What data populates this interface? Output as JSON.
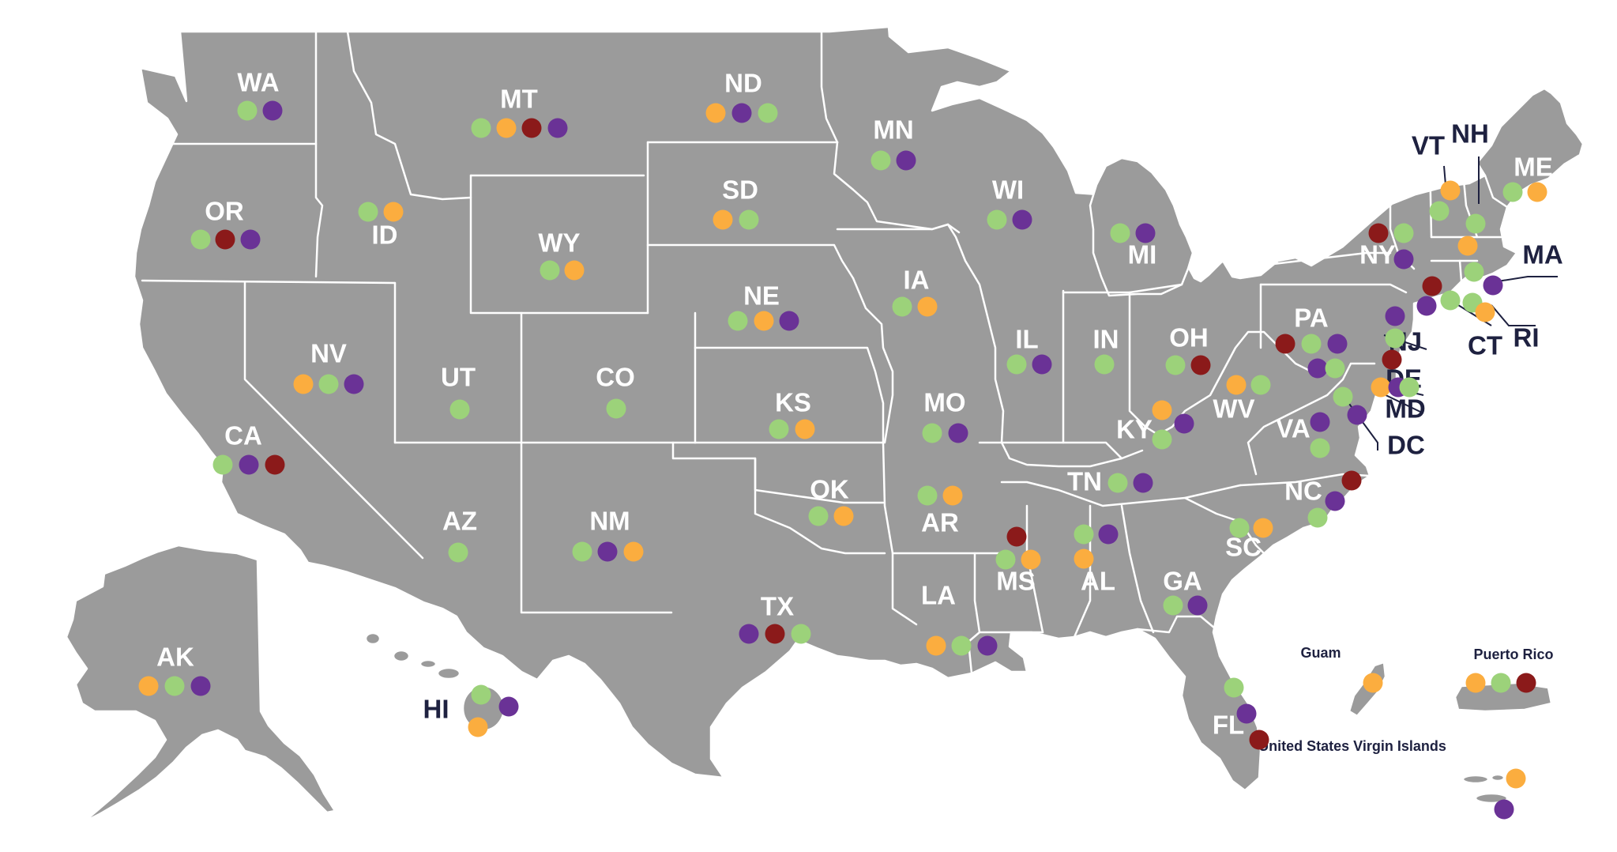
{
  "colors": {
    "land": "#9b9b9b",
    "green": "#9cd27a",
    "orange": "#fbad3f",
    "red": "#8b1a1a",
    "purple": "#6a3296",
    "outside_label": "#1e2140"
  },
  "states": [
    {
      "abbr": "WA",
      "markers": [
        "green",
        "purple"
      ]
    },
    {
      "abbr": "OR",
      "markers": [
        "green",
        "red",
        "purple"
      ]
    },
    {
      "abbr": "CA",
      "markers": [
        "green",
        "purple",
        "red"
      ]
    },
    {
      "abbr": "ID",
      "markers": [
        "green",
        "orange"
      ]
    },
    {
      "abbr": "NV",
      "markers": [
        "orange",
        "green",
        "purple"
      ]
    },
    {
      "abbr": "MT",
      "markers": [
        "green",
        "orange",
        "red",
        "purple"
      ]
    },
    {
      "abbr": "WY",
      "markers": [
        "green",
        "orange"
      ]
    },
    {
      "abbr": "UT",
      "markers": [
        "green"
      ]
    },
    {
      "abbr": "AZ",
      "markers": [
        "green"
      ]
    },
    {
      "abbr": "CO",
      "markers": [
        "green"
      ]
    },
    {
      "abbr": "NM",
      "markers": [
        "green",
        "purple",
        "orange"
      ]
    },
    {
      "abbr": "ND",
      "markers": [
        "orange",
        "purple",
        "green"
      ]
    },
    {
      "abbr": "SD",
      "markers": [
        "orange",
        "green"
      ]
    },
    {
      "abbr": "NE",
      "markers": [
        "green",
        "orange",
        "purple"
      ]
    },
    {
      "abbr": "KS",
      "markers": [
        "green",
        "orange"
      ]
    },
    {
      "abbr": "OK",
      "markers": [
        "green",
        "orange"
      ]
    },
    {
      "abbr": "TX",
      "markers": [
        "purple",
        "red",
        "green"
      ]
    },
    {
      "abbr": "MN",
      "markers": [
        "green",
        "purple"
      ]
    },
    {
      "abbr": "IA",
      "markers": [
        "green",
        "orange"
      ]
    },
    {
      "abbr": "MO",
      "markers": [
        "green",
        "purple"
      ]
    },
    {
      "abbr": "AR",
      "markers": [
        "green",
        "orange"
      ]
    },
    {
      "abbr": "LA",
      "markers": [
        "orange",
        "green",
        "purple"
      ]
    },
    {
      "abbr": "WI",
      "markers": [
        "green",
        "purple"
      ]
    },
    {
      "abbr": "IL",
      "markers": [
        "green",
        "purple"
      ]
    },
    {
      "abbr": "MI",
      "markers": [
        "green",
        "purple"
      ]
    },
    {
      "abbr": "IN",
      "markers": [
        "green"
      ]
    },
    {
      "abbr": "OH",
      "markers": [
        "green",
        "red"
      ]
    },
    {
      "abbr": "KY",
      "markers": [
        "orange",
        "purple",
        "green"
      ]
    },
    {
      "abbr": "TN",
      "markers": [
        "green",
        "purple"
      ]
    },
    {
      "abbr": "MS",
      "markers": [
        "red",
        "green",
        "orange"
      ]
    },
    {
      "abbr": "AL",
      "markers": [
        "green",
        "purple",
        "orange"
      ]
    },
    {
      "abbr": "GA",
      "markers": [
        "green",
        "purple"
      ]
    },
    {
      "abbr": "FL",
      "markers": [
        "green",
        "purple",
        "red"
      ]
    },
    {
      "abbr": "SC",
      "markers": [
        "green",
        "orange"
      ]
    },
    {
      "abbr": "NC",
      "markers": [
        "red",
        "purple",
        "green"
      ]
    },
    {
      "abbr": "VA",
      "markers": [
        "purple",
        "green"
      ]
    },
    {
      "abbr": "WV",
      "markers": [
        "orange",
        "green"
      ]
    },
    {
      "abbr": "PA",
      "markers": [
        "red",
        "green",
        "purple"
      ]
    },
    {
      "abbr": "NY",
      "markers": [
        "red",
        "green",
        "purple"
      ]
    },
    {
      "abbr": "VT",
      "markers": [
        "orange",
        "green"
      ]
    },
    {
      "abbr": "NH",
      "markers": [
        "green",
        "orange"
      ]
    },
    {
      "abbr": "ME",
      "markers": [
        "green",
        "orange"
      ]
    },
    {
      "abbr": "MA",
      "markers": [
        "green",
        "purple"
      ]
    },
    {
      "abbr": "CT",
      "markers": [
        "red",
        "purple",
        "green"
      ]
    },
    {
      "abbr": "RI",
      "markers": [
        "green",
        "orange"
      ]
    },
    {
      "abbr": "NJ",
      "markers": [
        "purple",
        "green"
      ]
    },
    {
      "abbr": "DE",
      "markers": [
        "red",
        "orange",
        "purple",
        "green"
      ]
    },
    {
      "abbr": "MD",
      "markers": [
        "purple",
        "green"
      ]
    },
    {
      "abbr": "DC",
      "markers": [
        "green",
        "purple"
      ]
    },
    {
      "abbr": "AK",
      "markers": [
        "orange",
        "green",
        "purple"
      ]
    },
    {
      "abbr": "HI",
      "markers": [
        "green",
        "purple",
        "orange"
      ]
    }
  ],
  "territories": [
    {
      "name": "Guam",
      "markers": [
        "orange"
      ]
    },
    {
      "name": "Puerto Rico",
      "markers": [
        "orange",
        "green",
        "red"
      ]
    },
    {
      "name": "United States Virgin Islands",
      "markers": [
        "orange",
        "purple"
      ]
    }
  ]
}
